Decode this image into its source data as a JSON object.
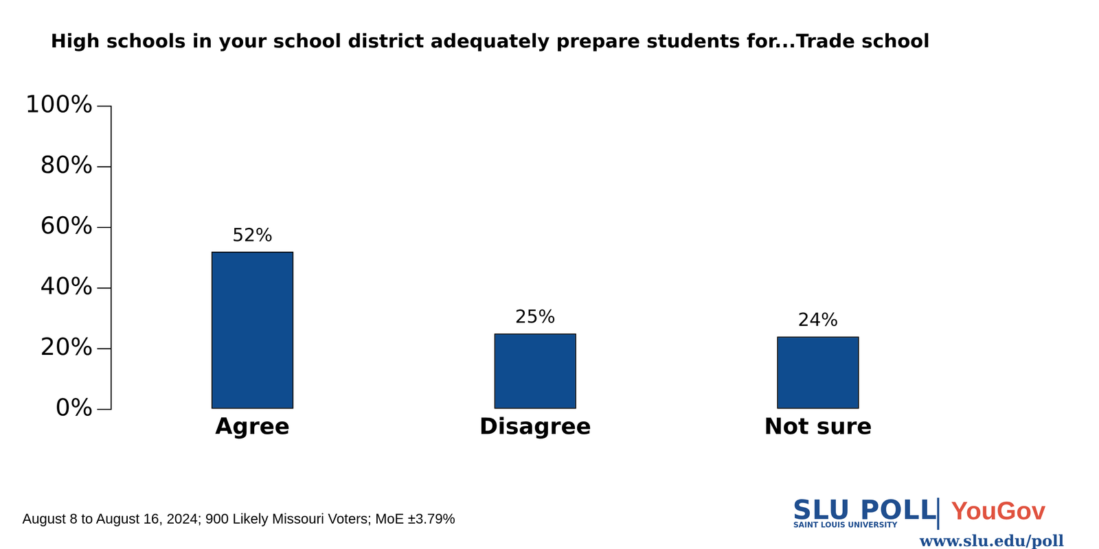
{
  "chart_data": {
    "type": "bar",
    "title": "High schools in your school district adequately prepare students for...Trade school",
    "categories": [
      "Agree",
      "Disagree",
      "Not sure"
    ],
    "values": [
      52,
      25,
      24
    ],
    "value_labels": [
      "52%",
      "25%",
      "24%"
    ],
    "color": "#0f4c8f",
    "ylim": [
      0,
      100
    ],
    "yticks": [
      {
        "value": 0,
        "label": "0%"
      },
      {
        "value": 20,
        "label": "20%"
      },
      {
        "value": 40,
        "label": "40%"
      },
      {
        "value": 60,
        "label": "60%"
      },
      {
        "value": 80,
        "label": "80%"
      },
      {
        "value": 100,
        "label": "100%"
      }
    ],
    "grid": false,
    "data_labels": true,
    "annotations": [
      "August 8 to August 16, 2024; 900 Likely Missouri Voters; MoE ±3.79%",
      "SLU POLL",
      "SAINT LOUIS UNIVERSITY",
      "YouGov",
      "www.slu.edu/poll"
    ]
  }
}
